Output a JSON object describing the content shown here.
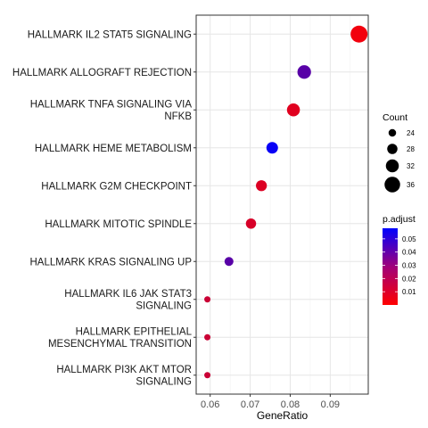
{
  "chart_data": {
    "type": "scatter",
    "xlabel": "GeneRatio",
    "ylabel": "",
    "xlim": [
      0.0565,
      0.0995
    ],
    "xticks": [
      0.06,
      0.07,
      0.08,
      0.09
    ],
    "xtick_labels": [
      "0.06",
      "0.07",
      "0.08",
      "0.09"
    ],
    "grid": true,
    "legend_position": "right",
    "points": [
      {
        "term_lines": [
          "HALLMARK IL2 STAT5 SIGNALING"
        ],
        "gene_ratio": 0.0972,
        "count": 38,
        "p_adjust": 0.003
      },
      {
        "term_lines": [
          "HALLMARK ALLOGRAFT REJECTION"
        ],
        "gene_ratio": 0.0835,
        "count": 33,
        "p_adjust": 0.038
      },
      {
        "term_lines": [
          "HALLMARK TNFA SIGNALING VIA",
          "NFKB"
        ],
        "gene_ratio": 0.0808,
        "count": 32,
        "p_adjust": 0.007
      },
      {
        "term_lines": [
          "HALLMARK HEME METABOLISM"
        ],
        "gene_ratio": 0.0755,
        "count": 30,
        "p_adjust": 0.056
      },
      {
        "term_lines": [
          "HALLMARK G2M CHECKPOINT"
        ],
        "gene_ratio": 0.0728,
        "count": 29,
        "p_adjust": 0.008
      },
      {
        "term_lines": [
          "HALLMARK MITOTIC SPINDLE"
        ],
        "gene_ratio": 0.0702,
        "count": 28,
        "p_adjust": 0.009
      },
      {
        "term_lines": [
          "HALLMARK KRAS SIGNALING UP"
        ],
        "gene_ratio": 0.0647,
        "count": 26,
        "p_adjust": 0.038
      },
      {
        "term_lines": [
          "HALLMARK IL6 JAK STAT3",
          "SIGNALING"
        ],
        "gene_ratio": 0.0593,
        "count": 22,
        "p_adjust": 0.012
      },
      {
        "term_lines": [
          "HALLMARK EPITHELIAL",
          "MESENCHYMAL TRANSITION"
        ],
        "gene_ratio": 0.0593,
        "count": 22,
        "p_adjust": 0.012
      },
      {
        "term_lines": [
          "HALLMARK PI3K AKT MTOR",
          "SIGNALING"
        ],
        "gene_ratio": 0.0593,
        "count": 22,
        "p_adjust": 0.012
      }
    ],
    "size_legend": {
      "title": "Count",
      "values": [
        24,
        28,
        32,
        36
      ],
      "labels": [
        "24",
        "28",
        "32",
        "36"
      ]
    },
    "color_legend": {
      "title": "p.adjust",
      "range": [
        0.0,
        0.058
      ],
      "ticks": [
        0.05,
        0.04,
        0.03,
        0.02,
        0.01
      ],
      "tick_labels": [
        "0.05",
        "0.04",
        "0.03",
        "0.02",
        "0.01"
      ],
      "low_color": "#ff0000",
      "high_color": "#0000ff"
    }
  }
}
